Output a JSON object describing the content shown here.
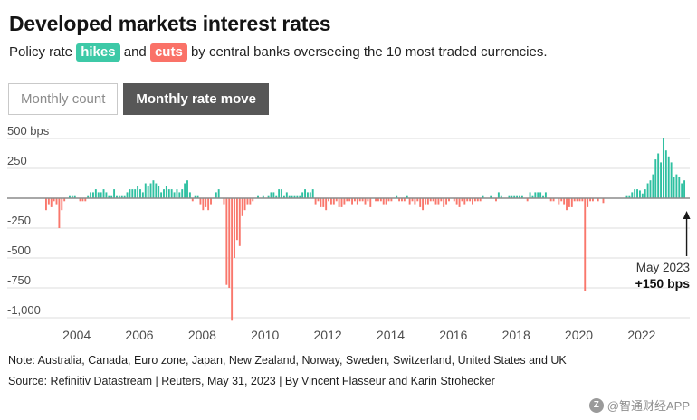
{
  "header": {
    "title": "Developed markets interest rates",
    "subtitle_prefix": "Policy rate ",
    "hikes_label": "hikes",
    "subtitle_mid": " and ",
    "cuts_label": "cuts",
    "subtitle_suffix": " by central banks overseeing the 10 most traded currencies."
  },
  "toggle": {
    "count_label": "Monthly count",
    "move_label": "Monthly rate move"
  },
  "colors": {
    "hike_bar": "#2fc0a1",
    "cut_bar": "#f9776c",
    "hike_badge": "#3dc9a7",
    "cut_badge": "#fa7268",
    "active_tab_bg": "#575757",
    "grid_line": "#dedede",
    "zero_line": "#8c8c8c",
    "axis_text": "#4d4d4d"
  },
  "chart_data": {
    "type": "bar",
    "title": "Monthly rate move",
    "ylabel": "bps",
    "unit": "bps",
    "start": "2003-01",
    "end": "2023-05",
    "ylim": [
      -1050,
      550
    ],
    "grid_values": [
      500,
      250,
      0,
      -250,
      -500,
      -750,
      -1000
    ],
    "y_ticks": [
      {
        "value": 500,
        "label": "500 bps"
      },
      {
        "value": 250,
        "label": "250"
      },
      {
        "value": -250,
        "label": "-250"
      },
      {
        "value": -500,
        "label": "-500"
      },
      {
        "value": -750,
        "label": "-750"
      },
      {
        "value": -1000,
        "label": "-1,000"
      }
    ],
    "x_ticks": [
      "2004",
      "2006",
      "2008",
      "2010",
      "2012",
      "2014",
      "2016",
      "2018",
      "2020",
      "2022"
    ],
    "values": [
      -100,
      -50,
      -75,
      -25,
      -50,
      -250,
      -100,
      -25,
      0,
      25,
      25,
      25,
      0,
      -25,
      -25,
      -25,
      25,
      50,
      50,
      75,
      50,
      50,
      75,
      50,
      25,
      25,
      75,
      25,
      25,
      25,
      25,
      50,
      75,
      75,
      75,
      100,
      75,
      50,
      125,
      100,
      125,
      150,
      125,
      100,
      50,
      75,
      100,
      75,
      75,
      50,
      75,
      50,
      75,
      125,
      150,
      50,
      -25,
      25,
      25,
      -50,
      -100,
      -75,
      -100,
      -50,
      0,
      50,
      75,
      0,
      -50,
      -725,
      -750,
      -1025,
      -500,
      -350,
      -400,
      -150,
      -100,
      -50,
      -50,
      -25,
      0,
      25,
      0,
      25,
      0,
      25,
      50,
      50,
      25,
      75,
      75,
      25,
      50,
      25,
      25,
      25,
      25,
      25,
      50,
      75,
      50,
      50,
      75,
      -50,
      -25,
      -75,
      -75,
      -100,
      -25,
      -50,
      -50,
      -25,
      -75,
      -75,
      -50,
      -25,
      -25,
      -50,
      -25,
      -50,
      -25,
      -25,
      -50,
      -25,
      -75,
      0,
      -25,
      -25,
      -25,
      -50,
      -50,
      -25,
      -25,
      0,
      25,
      -25,
      -25,
      -25,
      25,
      -50,
      -25,
      -50,
      -25,
      -75,
      -100,
      -50,
      -50,
      -25,
      -25,
      -50,
      -50,
      -25,
      -75,
      -50,
      -25,
      0,
      -25,
      -50,
      -75,
      -25,
      -50,
      -25,
      -25,
      -50,
      -25,
      -25,
      -25,
      25,
      0,
      0,
      25,
      0,
      -25,
      50,
      25,
      0,
      0,
      25,
      25,
      25,
      25,
      25,
      25,
      0,
      -25,
      50,
      25,
      50,
      50,
      50,
      25,
      50,
      0,
      -25,
      -25,
      0,
      -50,
      -25,
      -50,
      -100,
      -75,
      -75,
      -25,
      -25,
      -25,
      -25,
      -780,
      -75,
      -25,
      -25,
      0,
      -25,
      0,
      -40,
      0,
      0,
      0,
      0,
      0,
      0,
      0,
      0,
      25,
      25,
      50,
      75,
      75,
      65,
      40,
      75,
      125,
      150,
      200,
      325,
      375,
      300,
      500,
      400,
      350,
      300,
      175,
      200,
      175,
      125,
      150
    ],
    "annotation": {
      "label": "May 2023",
      "value_label": "+150 bps"
    }
  },
  "footer": {
    "note": "Note: Australia, Canada, Euro zone, Japan, New Zealand, Norway, Sweden, Switzerland, United States and UK",
    "source": "Source: Refinitiv Datastream | Reuters, May 31, 2023 | By Vincent Flasseur and Karin Strohecker"
  },
  "watermark": {
    "text": "@智通财经APP"
  }
}
